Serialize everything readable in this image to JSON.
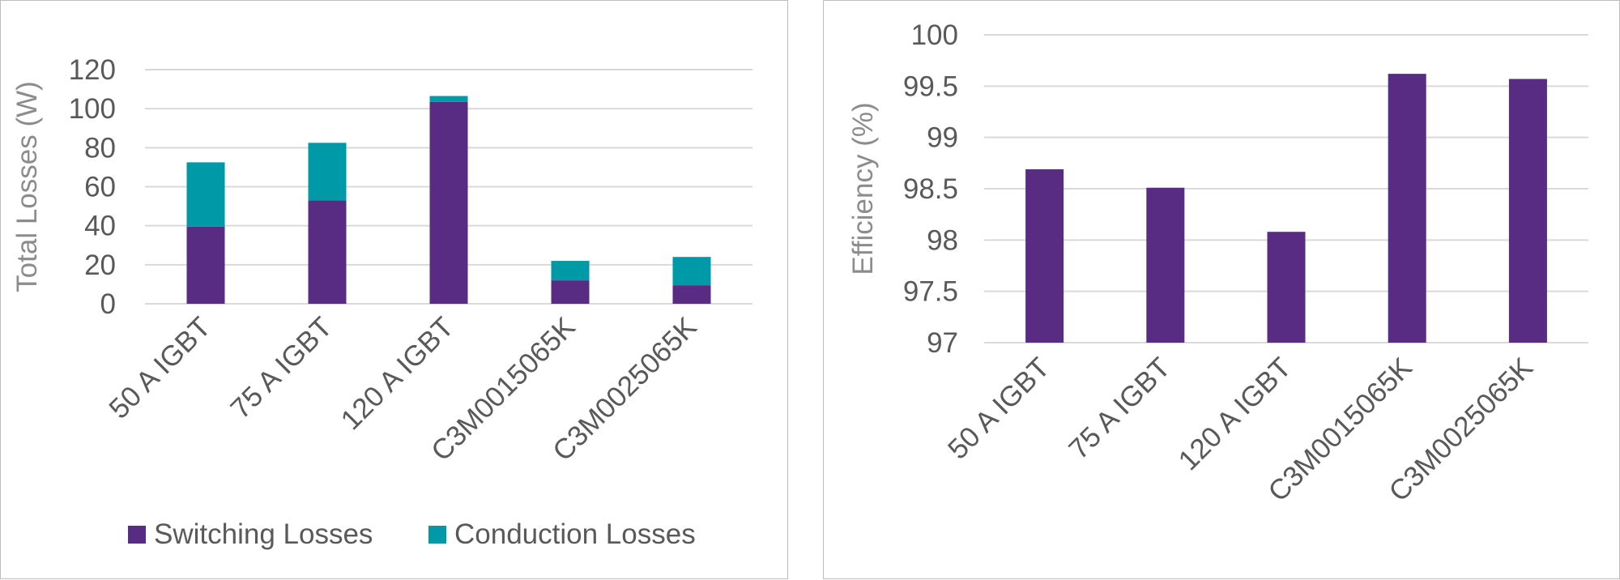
{
  "chart_data": [
    {
      "type": "bar",
      "stacked": true,
      "categories": [
        "50 A IGBT",
        "75 A IGBT",
        "120 A IGBT",
        "C3M0015065K",
        "C3M0025065K"
      ],
      "series": [
        {
          "name": "Switching Losses",
          "color": "#582C83",
          "values": [
            39.5,
            53,
            103.5,
            12,
            9.5
          ]
        },
        {
          "name": "Conduction Losses",
          "color": "#0099A8",
          "values": [
            33,
            29.5,
            3,
            10,
            14.5
          ]
        }
      ],
      "ylabel": "Total Losses (W)",
      "ylim": [
        0,
        120
      ],
      "yticks": [
        0,
        20,
        40,
        60,
        80,
        100,
        120
      ],
      "grid": true,
      "legend_position": "bottom"
    },
    {
      "type": "bar",
      "categories": [
        "50 A IGBT",
        "75 A IGBT",
        "120 A IGBT",
        "C3M0015065K",
        "C3M0025065K"
      ],
      "series": [
        {
          "color": "#582C83",
          "values": [
            98.69,
            98.51,
            98.08,
            99.62,
            99.57
          ]
        }
      ],
      "ylabel": "Efficiency (%)",
      "ylim": [
        97,
        100
      ],
      "yticks": [
        "97",
        "97.5",
        "98",
        "98.5",
        "99",
        "99.5",
        "100"
      ],
      "grid": true
    }
  ]
}
